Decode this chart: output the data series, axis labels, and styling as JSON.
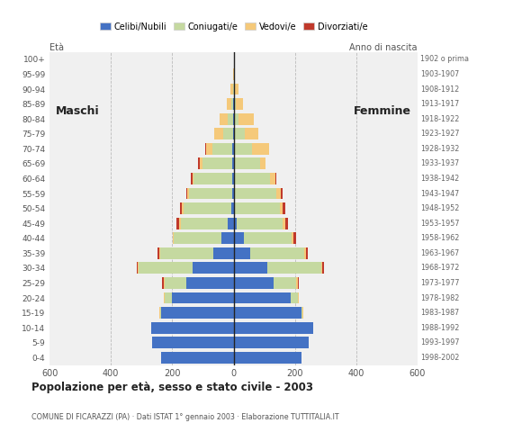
{
  "age_groups": [
    "0-4",
    "5-9",
    "10-14",
    "15-19",
    "20-24",
    "25-29",
    "30-34",
    "35-39",
    "40-44",
    "45-49",
    "50-54",
    "55-59",
    "60-64",
    "65-69",
    "70-74",
    "75-79",
    "80-84",
    "85-89",
    "90-94",
    "95-99",
    "100+"
  ],
  "birth_years": [
    "1998-2002",
    "1993-1997",
    "1988-1992",
    "1983-1987",
    "1978-1982",
    "1973-1977",
    "1968-1972",
    "1963-1967",
    "1958-1962",
    "1953-1957",
    "1948-1952",
    "1943-1947",
    "1938-1942",
    "1933-1937",
    "1928-1932",
    "1923-1927",
    "1918-1922",
    "1913-1917",
    "1908-1912",
    "1903-1907",
    "1902 o prima"
  ],
  "males_celibe": [
    235,
    265,
    270,
    235,
    200,
    155,
    135,
    65,
    40,
    18,
    8,
    5,
    5,
    5,
    5,
    3,
    2,
    2,
    0,
    0,
    0
  ],
  "males_coniugati": [
    0,
    0,
    0,
    5,
    25,
    70,
    175,
    175,
    155,
    155,
    155,
    140,
    125,
    95,
    65,
    30,
    18,
    5,
    3,
    0,
    0
  ],
  "males_vedovi": [
    0,
    0,
    0,
    2,
    2,
    2,
    2,
    2,
    3,
    5,
    5,
    5,
    5,
    10,
    20,
    30,
    25,
    15,
    7,
    2,
    0
  ],
  "males_divorziati": [
    0,
    0,
    0,
    0,
    0,
    5,
    5,
    5,
    0,
    8,
    7,
    5,
    5,
    5,
    3,
    0,
    0,
    0,
    0,
    0,
    0
  ],
  "females_celibe": [
    220,
    245,
    260,
    220,
    185,
    130,
    110,
    55,
    35,
    10,
    5,
    5,
    5,
    5,
    5,
    2,
    2,
    2,
    0,
    0,
    0
  ],
  "females_coniugati": [
    0,
    0,
    0,
    5,
    25,
    75,
    175,
    175,
    155,
    150,
    145,
    135,
    115,
    80,
    55,
    35,
    15,
    5,
    2,
    0,
    0
  ],
  "females_vedovi": [
    0,
    0,
    0,
    2,
    3,
    5,
    5,
    5,
    5,
    8,
    10,
    15,
    15,
    20,
    55,
    45,
    50,
    25,
    15,
    5,
    2
  ],
  "females_divorziati": [
    0,
    0,
    0,
    0,
    0,
    3,
    5,
    8,
    8,
    8,
    8,
    5,
    5,
    0,
    0,
    0,
    0,
    0,
    0,
    0,
    0
  ],
  "colors": {
    "celibe": "#4472c4",
    "coniugati": "#c5d9a0",
    "vedovi": "#f5c97a",
    "divorziati": "#c0392b"
  },
  "title": "Popolazione per età, sesso e stato civile - 2003",
  "subtitle": "COMUNE DI FICARAZZI (PA) · Dati ISTAT 1° gennaio 2003 · Elaborazione TUTTITALIA.IT",
  "xlabel_left": "Età",
  "xlabel_right": "Anno di nascita",
  "label_maschi": "Maschi",
  "label_femmine": "Femmine",
  "xlim": 600,
  "bg_color": "#ffffff",
  "plot_bg_color": "#f0f0f0",
  "legend_labels": [
    "Celibi/Nubili",
    "Coniugati/e",
    "Vedovi/e",
    "Divorziati/e"
  ]
}
